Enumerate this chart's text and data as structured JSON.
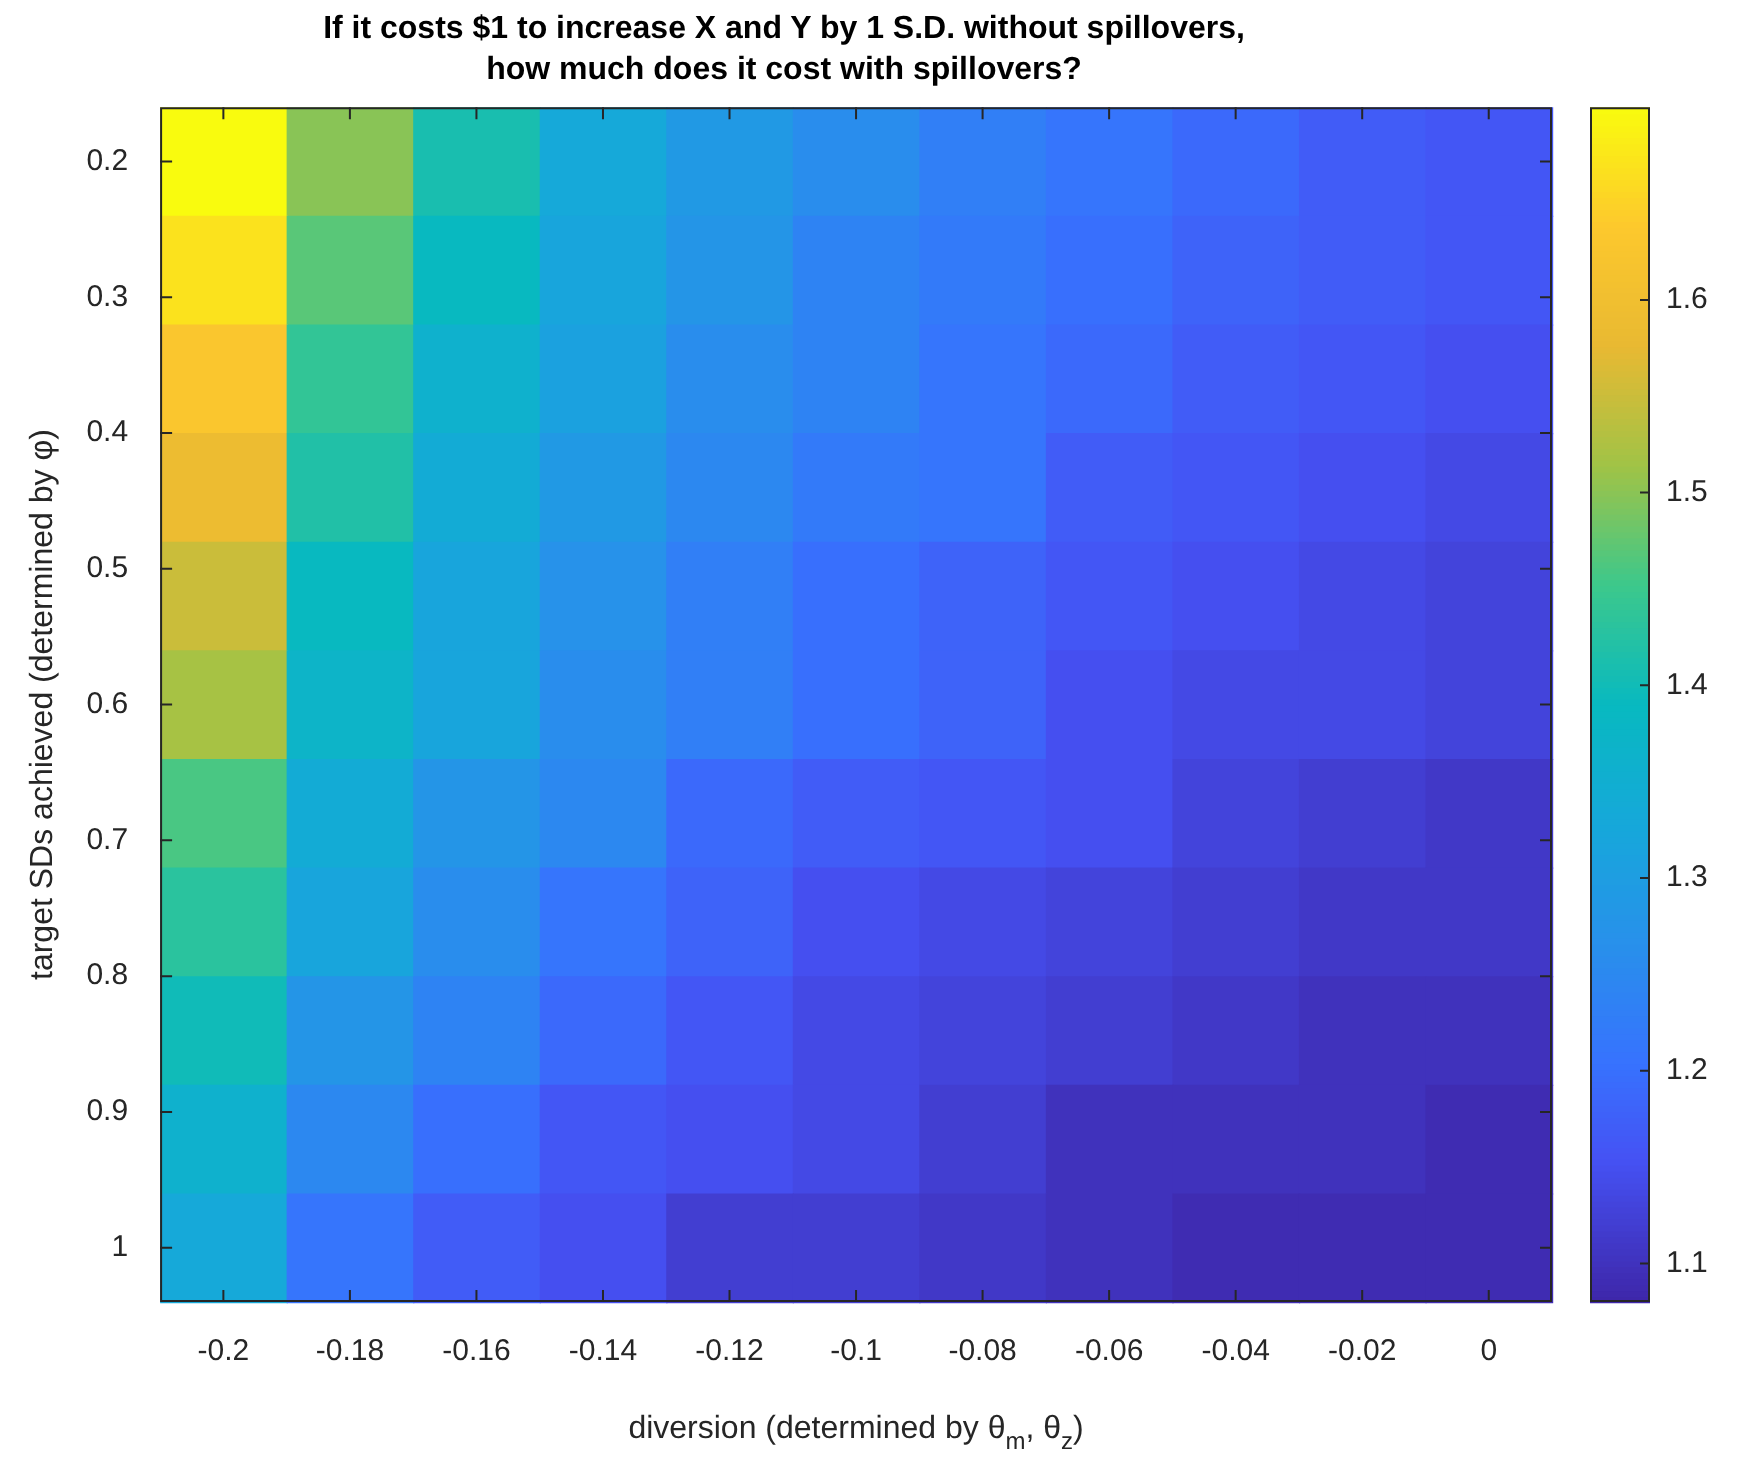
{
  "chart_data": {
    "type": "heatmap",
    "title": "If it costs $1 to increase X and Y by 1 S.D. without spillovers,\nhow much does it cost with spillovers?",
    "xlabel": "diversion (determined by θ$_{m}$, θ$_{z}$)",
    "ylabel": "target SDs achieved (determined by φ)",
    "categories": [
      "-0.2",
      "-0.18",
      "-0.16",
      "-0.14",
      "-0.12",
      "-0.1",
      "-0.08",
      "-0.06",
      "-0.04",
      "-0.02",
      "0"
    ],
    "ylim": [
      1.04,
      0.16
    ],
    "yticks": [
      0.2,
      0.3,
      0.4,
      0.5,
      0.6,
      0.7,
      0.8,
      0.9,
      1
    ],
    "cells": [
      [
        1.7,
        1.5,
        1.41,
        1.33,
        1.29,
        1.26,
        1.23,
        1.21,
        1.19,
        1.17,
        1.16
      ],
      [
        1.67,
        1.47,
        1.39,
        1.32,
        1.28,
        1.24,
        1.22,
        1.2,
        1.18,
        1.17,
        1.16
      ],
      [
        1.63,
        1.44,
        1.36,
        1.31,
        1.26,
        1.24,
        1.21,
        1.19,
        1.17,
        1.16,
        1.15
      ],
      [
        1.59,
        1.42,
        1.34,
        1.29,
        1.25,
        1.22,
        1.21,
        1.17,
        1.16,
        1.15,
        1.14
      ],
      [
        1.55,
        1.39,
        1.32,
        1.27,
        1.23,
        1.2,
        1.18,
        1.16,
        1.15,
        1.14,
        1.13
      ],
      [
        1.52,
        1.37,
        1.32,
        1.26,
        1.23,
        1.2,
        1.18,
        1.15,
        1.14,
        1.14,
        1.13
      ],
      [
        1.46,
        1.34,
        1.28,
        1.25,
        1.19,
        1.17,
        1.16,
        1.15,
        1.13,
        1.12,
        1.11
      ],
      [
        1.43,
        1.32,
        1.26,
        1.21,
        1.18,
        1.15,
        1.14,
        1.13,
        1.12,
        1.11,
        1.11
      ],
      [
        1.4,
        1.28,
        1.24,
        1.19,
        1.16,
        1.14,
        1.13,
        1.12,
        1.11,
        1.1,
        1.1
      ],
      [
        1.36,
        1.25,
        1.2,
        1.16,
        1.15,
        1.14,
        1.12,
        1.1,
        1.1,
        1.1,
        1.09
      ],
      [
        1.33,
        1.21,
        1.17,
        1.15,
        1.12,
        1.12,
        1.11,
        1.1,
        1.09,
        1.09,
        1.09
      ]
    ],
    "clim": [
      1.08,
      1.7
    ],
    "cticks": [
      1.1,
      1.2,
      1.3,
      1.4,
      1.5,
      1.6
    ]
  }
}
